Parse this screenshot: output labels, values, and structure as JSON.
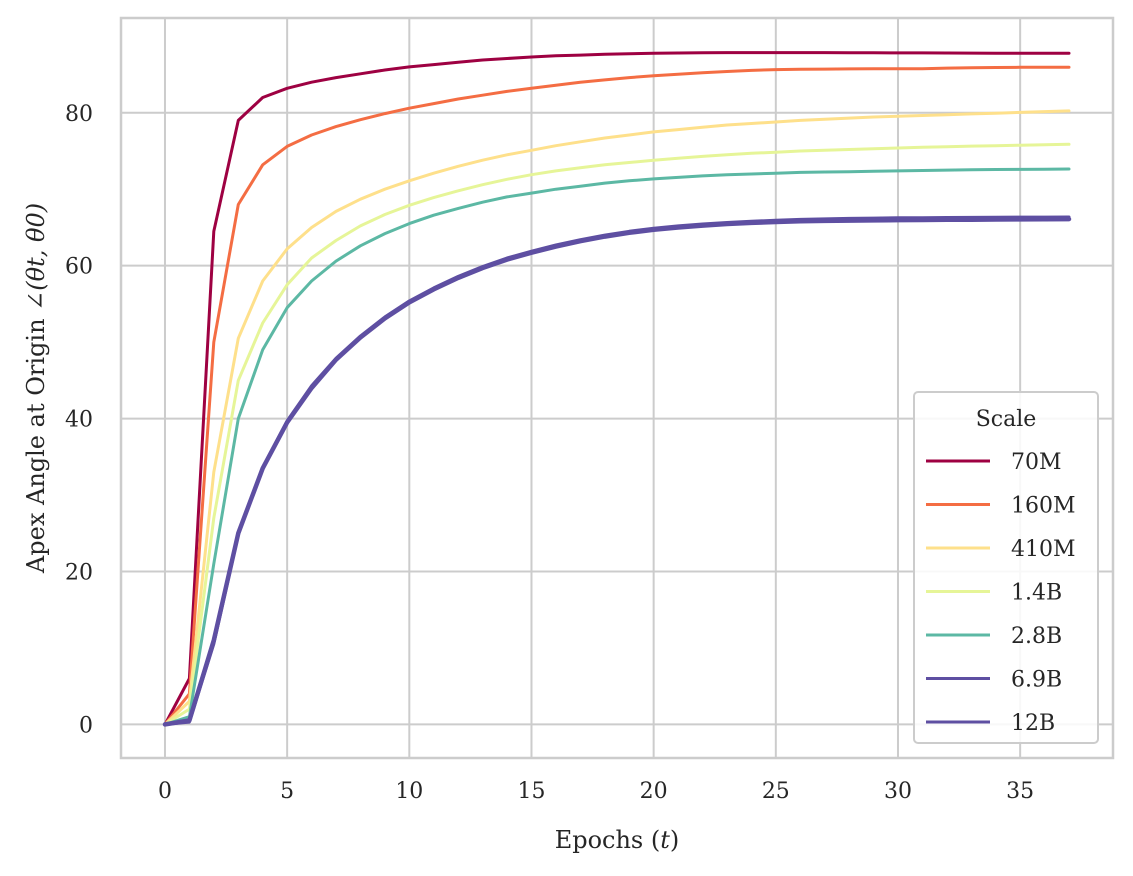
{
  "chart_data": {
    "type": "line",
    "xlabel": "Epochs (t)",
    "ylabel": "Apex Angle at Origin ∠(θt, θ0)",
    "xlim": [
      -1.8,
      38.8
    ],
    "ylim": [
      -4.4,
      92.4
    ],
    "xticks": [
      0,
      5,
      10,
      15,
      20,
      25,
      30,
      35
    ],
    "yticks": [
      0,
      20,
      40,
      60,
      80
    ],
    "grid": true,
    "legend": {
      "title": "Scale",
      "position": "lower-right"
    },
    "x": [
      0,
      1,
      2,
      3,
      4,
      5,
      6,
      7,
      8,
      9,
      10,
      11,
      12,
      13,
      14,
      15,
      16,
      17,
      18,
      19,
      20,
      21,
      22,
      23,
      24,
      25,
      26,
      27,
      28,
      29,
      30,
      31,
      32,
      33,
      34,
      35,
      36,
      37
    ],
    "series": [
      {
        "name": "70M",
        "color": "#9e0142",
        "width": 3,
        "values": [
          0,
          6,
          64.5,
          79,
          82,
          83.2,
          84,
          84.6,
          85.1,
          85.6,
          86,
          86.3,
          86.6,
          86.9,
          87.1,
          87.3,
          87.45,
          87.55,
          87.65,
          87.72,
          87.78,
          87.82,
          87.85,
          87.87,
          87.88,
          87.88,
          87.88,
          87.87,
          87.86,
          87.85,
          87.84,
          87.83,
          87.82,
          87.81,
          87.8,
          87.8,
          87.8,
          87.8
        ]
      },
      {
        "name": "160M",
        "color": "#f46d43",
        "width": 3,
        "values": [
          0,
          4,
          50,
          68,
          73.2,
          75.6,
          77.1,
          78.2,
          79.1,
          79.9,
          80.6,
          81.2,
          81.8,
          82.3,
          82.8,
          83.2,
          83.6,
          84,
          84.3,
          84.6,
          84.85,
          85.05,
          85.25,
          85.4,
          85.55,
          85.65,
          85.7,
          85.72,
          85.74,
          85.75,
          85.75,
          85.76,
          85.85,
          85.9,
          85.93,
          85.95,
          85.96,
          85.97
        ]
      },
      {
        "name": "410M",
        "color": "#fee08b",
        "width": 3,
        "values": [
          0,
          3,
          33,
          50.5,
          58,
          62.2,
          65,
          67.1,
          68.7,
          70,
          71.1,
          72.1,
          73,
          73.8,
          74.5,
          75.1,
          75.7,
          76.2,
          76.7,
          77.1,
          77.5,
          77.8,
          78.1,
          78.4,
          78.6,
          78.8,
          79,
          79.15,
          79.3,
          79.45,
          79.55,
          79.65,
          79.75,
          79.85,
          79.95,
          80.05,
          80.15,
          80.25
        ]
      },
      {
        "name": "1.4B",
        "color": "#e6f598",
        "width": 3,
        "values": [
          0,
          2,
          27,
          45,
          52.5,
          57.5,
          61,
          63.3,
          65.2,
          66.7,
          67.9,
          68.9,
          69.8,
          70.6,
          71.3,
          71.9,
          72.4,
          72.8,
          73.2,
          73.5,
          73.8,
          74.05,
          74.3,
          74.5,
          74.7,
          74.85,
          75,
          75.1,
          75.2,
          75.3,
          75.4,
          75.48,
          75.56,
          75.64,
          75.7,
          75.76,
          75.82,
          75.88
        ]
      },
      {
        "name": "2.8B",
        "color": "#5cb8a4",
        "width": 3,
        "values": [
          0,
          1,
          21,
          40,
          49,
          54.5,
          58,
          60.6,
          62.6,
          64.2,
          65.5,
          66.6,
          67.5,
          68.3,
          69,
          69.5,
          70,
          70.4,
          70.8,
          71.1,
          71.35,
          71.55,
          71.75,
          71.9,
          72,
          72.1,
          72.2,
          72.25,
          72.3,
          72.35,
          72.4,
          72.45,
          72.5,
          72.55,
          72.58,
          72.6,
          72.62,
          72.65
        ]
      },
      {
        "name": "6.9B",
        "color": "#5e4fa2",
        "width": 3,
        "values": [
          0,
          0.3,
          10.5,
          24.8,
          33.6,
          39.7,
          44.3,
          47.9,
          50.8,
          53.3,
          55.4,
          57.1,
          58.6,
          59.9,
          61,
          61.9,
          62.7,
          63.4,
          64,
          64.5,
          64.9,
          65.2,
          65.45,
          65.65,
          65.8,
          65.95,
          66.05,
          66.12,
          66.18,
          66.22,
          66.26,
          66.28,
          66.3,
          66.32,
          66.34,
          66.35,
          66.36,
          66.37
        ]
      },
      {
        "name": "12B",
        "color": "#5e4fa2",
        "width": 4.5,
        "values": [
          0,
          0.5,
          11,
          25,
          33.5,
          39.5,
          44,
          47.7,
          50.6,
          53.1,
          55.2,
          56.9,
          58.4,
          59.7,
          60.8,
          61.7,
          62.5,
          63.2,
          63.8,
          64.3,
          64.7,
          65,
          65.25,
          65.45,
          65.6,
          65.72,
          65.8,
          65.86,
          65.9,
          65.93,
          65.96,
          65.98,
          66,
          66.02,
          66.04,
          66.06,
          66.08,
          66.1
        ]
      }
    ]
  }
}
